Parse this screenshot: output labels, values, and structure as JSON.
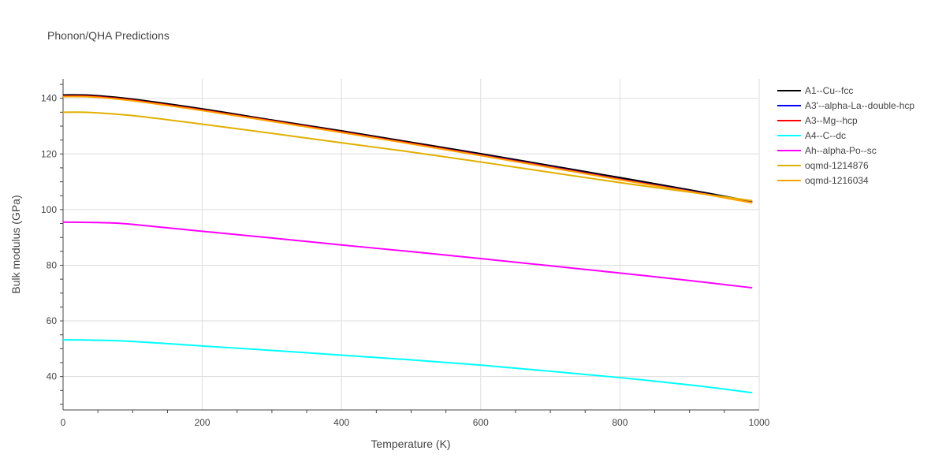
{
  "chart_data": {
    "type": "line",
    "title": "Phonon/QHA Predictions",
    "xlabel": "Temperature (K)",
    "ylabel": "Bulk modulus (GPa)",
    "xlim": [
      0,
      1000
    ],
    "ylim": [
      28,
      147
    ],
    "x_ticks": [
      0,
      200,
      400,
      600,
      800,
      1000
    ],
    "y_ticks": [
      40,
      60,
      80,
      100,
      120,
      140
    ],
    "grid": true,
    "legend_position": "right",
    "series": [
      {
        "name": "A1--Cu--fcc",
        "color": "#000000",
        "x": [
          0,
          40,
          100,
          200,
          300,
          400,
          500,
          600,
          700,
          800,
          900,
          990
        ],
        "y": [
          141.2,
          141.1,
          139.7,
          136.2,
          132.2,
          128.3,
          124.2,
          120.1,
          115.8,
          111.5,
          107.1,
          102.9
        ]
      },
      {
        "name": "A3'--alpha-La--double-hcp",
        "color": "#0000ff",
        "x": [
          0,
          40,
          100,
          200,
          300,
          400,
          500,
          600,
          700,
          800,
          900,
          990
        ],
        "y": [
          140.8,
          140.7,
          139.3,
          135.8,
          131.9,
          127.9,
          123.8,
          119.7,
          115.4,
          111.0,
          106.7,
          102.6
        ]
      },
      {
        "name": "A3--Mg--hcp",
        "color": "#ff0000",
        "x": [
          0,
          40,
          100,
          200,
          300,
          400,
          500,
          600,
          700,
          800,
          900,
          990
        ],
        "y": [
          140.8,
          140.7,
          139.3,
          135.8,
          131.9,
          127.9,
          123.8,
          119.6,
          115.3,
          110.9,
          106.6,
          102.5
        ]
      },
      {
        "name": "A4--C--dc",
        "color": "#00ffff",
        "x": [
          0,
          40,
          100,
          200,
          300,
          400,
          500,
          600,
          700,
          800,
          900,
          990
        ],
        "y": [
          53.2,
          53.1,
          52.6,
          51.0,
          49.4,
          47.7,
          46.0,
          44.1,
          41.9,
          39.6,
          37.0,
          34.2
        ]
      },
      {
        "name": "Ah--alpha-Po--sc",
        "color": "#ff00ff",
        "x": [
          0,
          60,
          100,
          200,
          300,
          400,
          500,
          600,
          700,
          800,
          900,
          990
        ],
        "y": [
          95.5,
          95.3,
          94.7,
          92.2,
          89.8,
          87.3,
          84.9,
          82.4,
          79.8,
          77.2,
          74.5,
          71.9
        ]
      },
      {
        "name": "oqmd-1214876",
        "color": "#e0b000",
        "x": [
          0,
          40,
          100,
          200,
          300,
          400,
          500,
          600,
          700,
          800,
          900,
          990
        ],
        "y": [
          135.0,
          134.9,
          133.8,
          130.7,
          127.4,
          124.0,
          120.7,
          117.1,
          113.4,
          109.7,
          106.3,
          103.2
        ]
      },
      {
        "name": "oqmd-1216034",
        "color": "#ffa500",
        "x": [
          0,
          40,
          100,
          200,
          300,
          400,
          500,
          600,
          700,
          800,
          900,
          990
        ],
        "y": [
          140.6,
          140.5,
          139.1,
          135.6,
          131.7,
          127.7,
          123.6,
          119.4,
          115.1,
          110.7,
          106.5,
          102.4
        ]
      }
    ]
  }
}
